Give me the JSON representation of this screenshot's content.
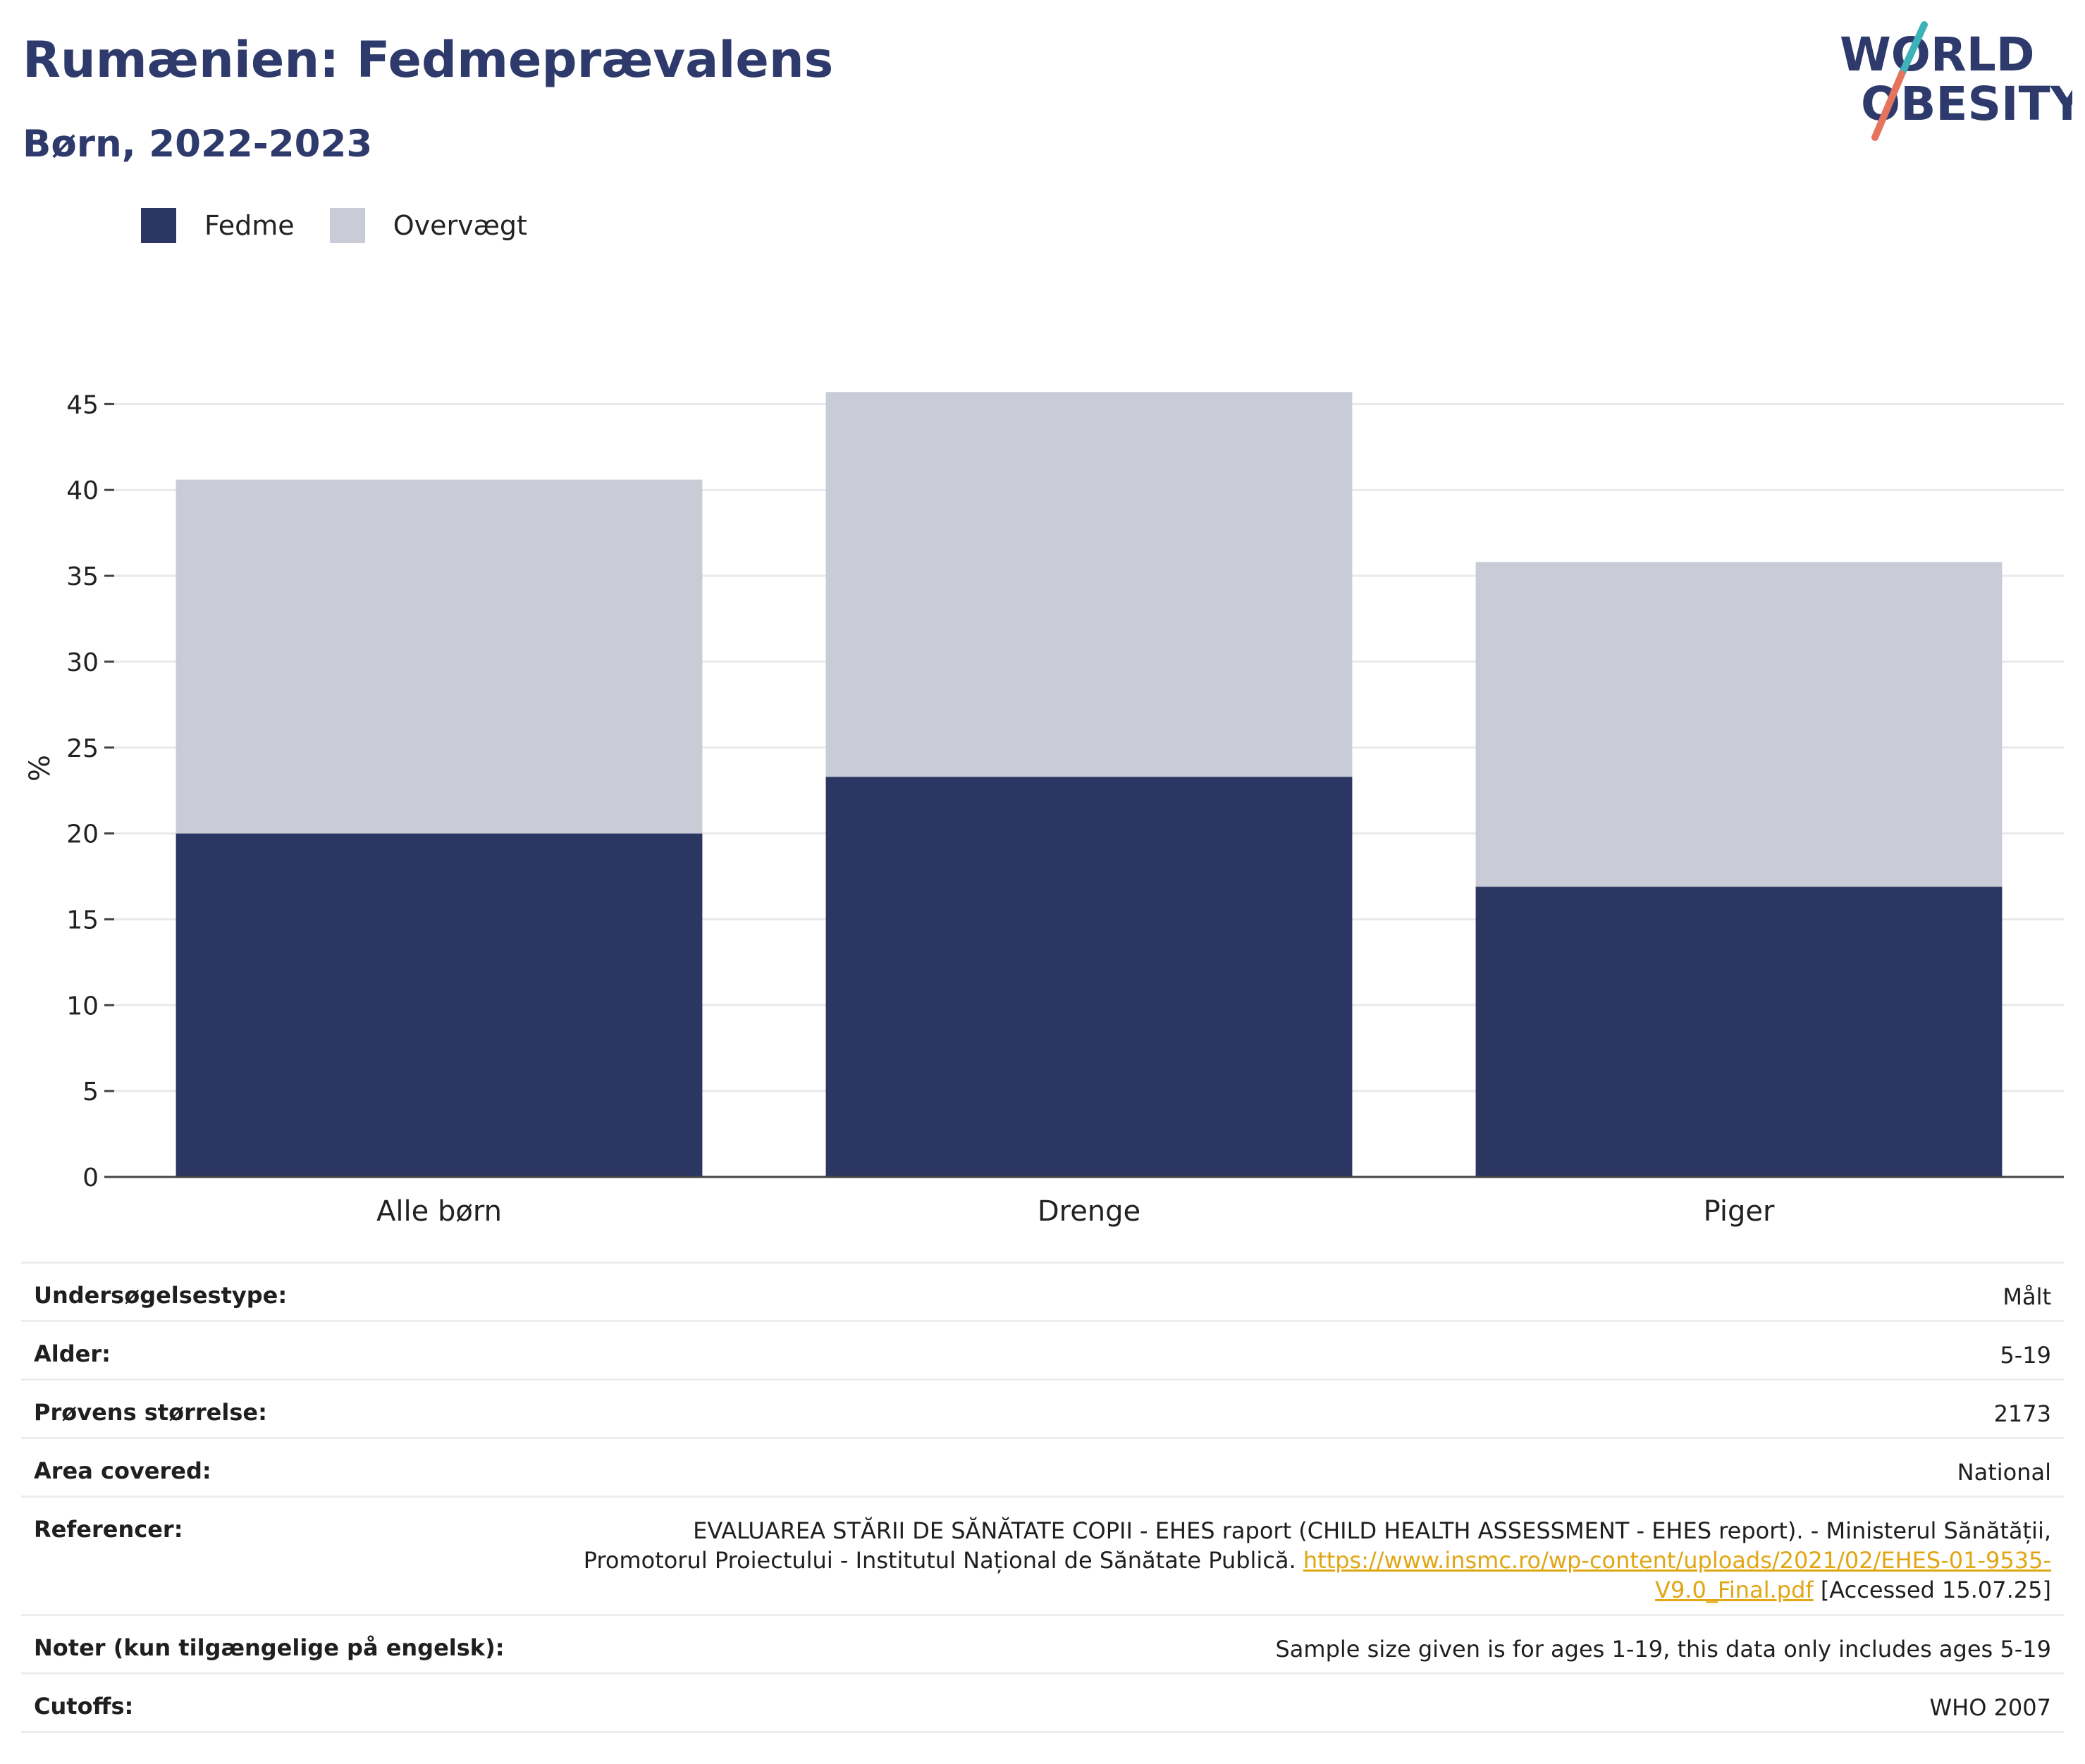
{
  "header": {
    "title": "Rumænien: Fedmeprævalens",
    "subtitle": "Børn, 2022-2023"
  },
  "logo": {
    "line1": "WORLD",
    "line2": "OBESITY",
    "accent_teal": "#3bb3b8",
    "accent_red": "#e5735d",
    "text_color": "#2d3a6b"
  },
  "legend": [
    {
      "label": "Fedme",
      "color": "#2b3663"
    },
    {
      "label": "Overvægt",
      "color": "#c9cbd6"
    }
  ],
  "chart_data": {
    "type": "bar",
    "stacked": true,
    "categories": [
      "Alle børn",
      "Drenge",
      "Piger"
    ],
    "series": [
      {
        "name": "Fedme",
        "values": [
          20.0,
          23.3,
          16.9
        ],
        "color": "#2b3663"
      },
      {
        "name": "Overvægt",
        "values": [
          20.6,
          22.4,
          18.9
        ],
        "color": "#c9cbd6"
      }
    ],
    "ylabel": "%",
    "ylim": [
      0,
      47
    ],
    "yticks": [
      0,
      5,
      10,
      15,
      20,
      25,
      30,
      35,
      40,
      45
    ],
    "grid": true
  },
  "info": {
    "survey_type_label": "Undersøgelsestype:",
    "survey_type_value": "Målt",
    "age_label": "Alder:",
    "age_value": "5-19",
    "sample_label": "Prøvens størrelse:",
    "sample_value": "2173",
    "area_label": "Area covered:",
    "area_value": "National",
    "references_label": "Referencer:",
    "references_line1": "EVALUAREA STĂRII DE SĂNĂTATE COPII - EHES raport (CHILD HEALTH ASSESSMENT - EHES report). - Ministerul Sănătății,",
    "references_line2_text": "Promotorul Proiectului - Institutul Național de Sănătate Publică. ",
    "references_link_part1": "https://www.insmc.ro/wp-content/uploads/2021/02/EHES-01-9535-",
    "references_link_part2": "V9.0_Final.pdf",
    "references_accessed": " [Accessed 15.07.25]",
    "notes_label": "Noter (kun tilgængelige på engelsk):",
    "notes_value": "Sample size given is for ages 1-19, this data only includes ages 5-19",
    "cutoffs_label": "Cutoffs:",
    "cutoffs_value": "WHO 2007"
  }
}
